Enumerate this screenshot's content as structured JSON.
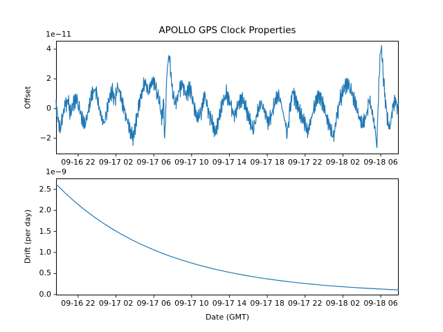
{
  "chart_data": [
    {
      "id": "offset",
      "type": "line",
      "title": "APOLLO GPS Clock Properties",
      "ylabel": "Offset",
      "offset_text": "1e−11",
      "unit_scale": "1e-11",
      "color": "#1f77b4",
      "grid": false,
      "legend": null,
      "xlim": [
        19.66,
        55.9
      ],
      "ylim": [
        -3.07,
        4.56
      ],
      "xticks": [
        {
          "v": 22,
          "label": "09-16 22"
        },
        {
          "v": 26,
          "label": "09-17 02"
        },
        {
          "v": 30,
          "label": "09-17 06"
        },
        {
          "v": 34,
          "label": "09-17 10"
        },
        {
          "v": 38,
          "label": "09-17 14"
        },
        {
          "v": 42,
          "label": "09-17 18"
        },
        {
          "v": 46,
          "label": "09-17 22"
        },
        {
          "v": 50,
          "label": "09-18 02"
        },
        {
          "v": 54,
          "label": "09-18 06"
        }
      ],
      "yticks": [
        {
          "v": -2,
          "label": "−2"
        },
        {
          "v": 0,
          "label": "0"
        },
        {
          "v": 2,
          "label": "2"
        },
        {
          "v": 4,
          "label": "4"
        }
      ],
      "series": {
        "kind": "noisy",
        "n": 900,
        "noise_amp": 1.0,
        "clip": [
          -2.8,
          4.35
        ],
        "base": [
          [
            19.66,
            0.2
          ],
          [
            19.9,
            -0.9
          ],
          [
            20.1,
            -1.45
          ],
          [
            20.35,
            -0.55
          ],
          [
            20.6,
            0.15
          ],
          [
            20.9,
            0.5
          ],
          [
            21.2,
            -0.3
          ],
          [
            21.5,
            0.3
          ],
          [
            21.8,
            0.7
          ],
          [
            22.1,
            0
          ],
          [
            22.4,
            -0.7
          ],
          [
            22.7,
            -1.2
          ],
          [
            23,
            -0.4
          ],
          [
            23.3,
            0.5
          ],
          [
            23.6,
            1.1
          ],
          [
            23.85,
            1.3
          ],
          [
            24.1,
            0.4
          ],
          [
            24.4,
            -0.5
          ],
          [
            24.7,
            -1.1
          ],
          [
            25,
            -0.3
          ],
          [
            25.3,
            0.6
          ],
          [
            25.6,
            1.2
          ],
          [
            25.9,
            0.5
          ],
          [
            26.2,
            1.5
          ],
          [
            26.5,
            0.8
          ],
          [
            26.8,
            0.1
          ],
          [
            27.1,
            -0.7
          ],
          [
            27.5,
            -1.5
          ],
          [
            27.8,
            -2
          ],
          [
            28.1,
            -1
          ],
          [
            28.45,
            0.3
          ],
          [
            28.8,
            1.2
          ],
          [
            29.1,
            1.8
          ],
          [
            29.4,
            1
          ],
          [
            29.7,
            1.6
          ],
          [
            30,
            1.9
          ],
          [
            30.3,
            1.1
          ],
          [
            30.6,
            0.4
          ],
          [
            30.85,
            -0.8
          ],
          [
            31.05,
            0.6
          ],
          [
            31.16,
            -2.6
          ],
          [
            31.3,
            1.2
          ],
          [
            31.45,
            2.8
          ],
          [
            31.6,
            3.62
          ],
          [
            31.75,
            2.7
          ],
          [
            31.9,
            1.5
          ],
          [
            32.1,
            0.6
          ],
          [
            32.3,
            0.3
          ],
          [
            32.7,
            1.2
          ],
          [
            33,
            1.7
          ],
          [
            33.4,
            0.8
          ],
          [
            33.8,
            1.4
          ],
          [
            34.2,
            0.3
          ],
          [
            34.6,
            -0.8
          ],
          [
            35,
            -0.2
          ],
          [
            35.4,
            0.9
          ],
          [
            35.8,
            -0.3
          ],
          [
            36.2,
            -1
          ],
          [
            36.5,
            -1.7
          ],
          [
            36.9,
            -0.6
          ],
          [
            37.3,
            0.4
          ],
          [
            37.7,
            1
          ],
          [
            38.1,
            0.3
          ],
          [
            38.5,
            -0.6
          ],
          [
            38.9,
            0.2
          ],
          [
            39.3,
            0.7
          ],
          [
            39.7,
            0.1
          ],
          [
            40.1,
            -0.8
          ],
          [
            40.5,
            -1.5
          ],
          [
            40.9,
            -0.5
          ],
          [
            41.3,
            0.4
          ],
          [
            41.7,
            -0.2
          ],
          [
            42.1,
            -1
          ],
          [
            42.5,
            -0.3
          ],
          [
            42.9,
            0.5
          ],
          [
            43.2,
            0.9
          ],
          [
            43.5,
            0.2
          ],
          [
            43.9,
            -1
          ],
          [
            44.1,
            -1.8
          ],
          [
            44.4,
            0
          ],
          [
            44.7,
            1.1
          ],
          [
            45.1,
            0.4
          ],
          [
            45.5,
            -0.4
          ],
          [
            45.9,
            -0.9
          ],
          [
            46.3,
            -1.6
          ],
          [
            46.7,
            -0.6
          ],
          [
            47.1,
            0.4
          ],
          [
            47.5,
            0.9
          ],
          [
            47.9,
            0.3
          ],
          [
            48.3,
            -0.7
          ],
          [
            48.7,
            -1.4
          ],
          [
            49,
            -2
          ],
          [
            49.3,
            -0.8
          ],
          [
            49.7,
            0.6
          ],
          [
            50.1,
            1.3
          ],
          [
            50.5,
            1.7
          ],
          [
            50.9,
            1.1
          ],
          [
            51.3,
            0.3
          ],
          [
            51.7,
            -0.6
          ],
          [
            52.1,
            -1.2
          ],
          [
            52.5,
            -0.4
          ],
          [
            52.8,
            0.6
          ],
          [
            53.1,
            -0.3
          ],
          [
            53.35,
            -1.2
          ],
          [
            53.6,
            -2.55
          ],
          [
            53.75,
            0.8
          ],
          [
            53.9,
            3
          ],
          [
            54.05,
            4.22
          ],
          [
            54.2,
            2.9
          ],
          [
            54.35,
            1.5
          ],
          [
            54.55,
            0.2
          ],
          [
            54.75,
            -1
          ],
          [
            54.95,
            -1.4
          ],
          [
            55.15,
            -0.5
          ],
          [
            55.35,
            0.3
          ],
          [
            55.55,
            0.6
          ],
          [
            55.75,
            0
          ],
          [
            55.9,
            0.3
          ]
        ],
        "noiseA": [
          0.32,
          -0.28,
          0.05,
          0.3,
          -0.33,
          0.12,
          0.25,
          -0.1,
          -0.3,
          0.2,
          0.34,
          -0.22,
          0.02,
          -0.35,
          0.18,
          0.28,
          -0.15,
          0.08,
          -0.25,
          0.33,
          -0.05,
          -0.18,
          0.15
        ],
        "noiseB": [
          0.1,
          -0.22,
          0.28,
          -0.05,
          0.18,
          -0.3,
          0.08,
          0.25,
          -0.12,
          -0.27,
          0.2,
          0.02,
          -0.17,
          0.3,
          -0.08,
          0.22,
          -0.25,
          0.05,
          0.15,
          -0.2,
          0.27,
          -0.02,
          -0.28,
          0.12,
          0.24,
          -0.1,
          0.17,
          -0.23,
          0.07,
          -0.14,
          0.26
        ]
      }
    },
    {
      "id": "drift",
      "type": "line",
      "ylabel": "Drift (per day)",
      "xlabel": "Date (GMT)",
      "offset_text": "1e−9",
      "unit_scale": "1e-9",
      "color": "#1f77b4",
      "grid": false,
      "legend": null,
      "xlim": [
        19.66,
        55.9
      ],
      "ylim": [
        -0.02,
        2.76
      ],
      "xticks": [
        {
          "v": 22,
          "label": "09-16 22"
        },
        {
          "v": 26,
          "label": "09-17 02"
        },
        {
          "v": 30,
          "label": "09-17 06"
        },
        {
          "v": 34,
          "label": "09-17 10"
        },
        {
          "v": 38,
          "label": "09-17 14"
        },
        {
          "v": 42,
          "label": "09-17 18"
        },
        {
          "v": 46,
          "label": "09-17 22"
        },
        {
          "v": 50,
          "label": "09-18 02"
        },
        {
          "v": 54,
          "label": "09-18 06"
        }
      ],
      "yticks": [
        {
          "v": 0,
          "label": "0.0"
        },
        {
          "v": 0.5,
          "label": "0.5"
        },
        {
          "v": 1,
          "label": "1.0"
        },
        {
          "v": 1.5,
          "label": "1.5"
        },
        {
          "v": 2,
          "label": "2.0"
        },
        {
          "v": 2.5,
          "label": "2.5"
        }
      ],
      "series": {
        "kind": "points",
        "points": [
          [
            19.66,
            2.625
          ],
          [
            20.66,
            2.405
          ],
          [
            21.66,
            2.203
          ],
          [
            22.66,
            2.018
          ],
          [
            23.66,
            1.849
          ],
          [
            24.66,
            1.694
          ],
          [
            25.66,
            1.552
          ],
          [
            26.66,
            1.422
          ],
          [
            27.66,
            1.302
          ],
          [
            28.66,
            1.193
          ],
          [
            29.66,
            1.093
          ],
          [
            30.66,
            1.001
          ],
          [
            31.66,
            0.917
          ],
          [
            32.66,
            0.84
          ],
          [
            33.66,
            0.77
          ],
          [
            34.66,
            0.705
          ],
          [
            35.66,
            0.646
          ],
          [
            36.66,
            0.592
          ],
          [
            37.66,
            0.542
          ],
          [
            38.66,
            0.497
          ],
          [
            39.66,
            0.455
          ],
          [
            40.66,
            0.417
          ],
          [
            41.66,
            0.382
          ],
          [
            42.66,
            0.35
          ],
          [
            43.66,
            0.321
          ],
          [
            44.66,
            0.294
          ],
          [
            45.66,
            0.269
          ],
          [
            46.66,
            0.247
          ],
          [
            47.66,
            0.226
          ],
          [
            48.66,
            0.207
          ],
          [
            49.66,
            0.19
          ],
          [
            50.66,
            0.174
          ],
          [
            51.66,
            0.159
          ],
          [
            52.66,
            0.146
          ],
          [
            53.66,
            0.134
          ],
          [
            54.66,
            0.122
          ],
          [
            55.66,
            0.112
          ],
          [
            55.9,
            0.11
          ]
        ]
      }
    }
  ]
}
